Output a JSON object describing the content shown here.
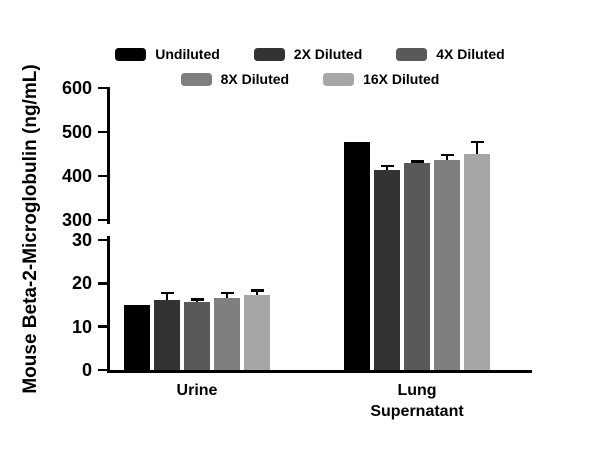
{
  "chart_data": {
    "type": "bar",
    "title": "",
    "ylabel": "Mouse Beta-2-Microglobulin (ng/mL)",
    "xlabel": "",
    "categories": [
      "Urine",
      "Lung Supernatant"
    ],
    "category_label_lines": [
      [
        "Urine"
      ],
      [
        "Lung",
        "Supernatant"
      ]
    ],
    "series": [
      {
        "name": "Undiluted",
        "color": "#000000",
        "values": [
          15.0,
          477
        ],
        "errors": [
          0,
          0
        ]
      },
      {
        "name": "2X Diluted",
        "color": "#333333",
        "values": [
          16.2,
          414
        ],
        "errors": [
          1.6,
          9
        ]
      },
      {
        "name": "4X Diluted",
        "color": "#595959",
        "values": [
          15.8,
          430
        ],
        "errors": [
          0.5,
          3
        ]
      },
      {
        "name": "8X Diluted",
        "color": "#7f7f7f",
        "values": [
          16.7,
          436
        ],
        "errors": [
          1.1,
          12
        ]
      },
      {
        "name": "16X Diluted",
        "color": "#a6a6a6",
        "values": [
          17.4,
          450
        ],
        "errors": [
          0.9,
          27
        ]
      }
    ],
    "y_axis": {
      "segments": [
        {
          "range": [
            0,
            30
          ],
          "ticks": [
            0,
            10,
            20,
            30
          ]
        },
        {
          "range": [
            300,
            600
          ],
          "ticks": [
            300,
            400,
            500,
            600
          ]
        }
      ],
      "break_between": [
        30,
        300
      ]
    },
    "legend": {
      "position": "top",
      "rows": [
        [
          "Undiluted",
          "2X Diluted",
          "4X Diluted"
        ],
        [
          "8X Diluted",
          "16X Diluted"
        ]
      ]
    },
    "grid": false,
    "bar_outline": "none",
    "error_bar_style": "upper-cap"
  }
}
